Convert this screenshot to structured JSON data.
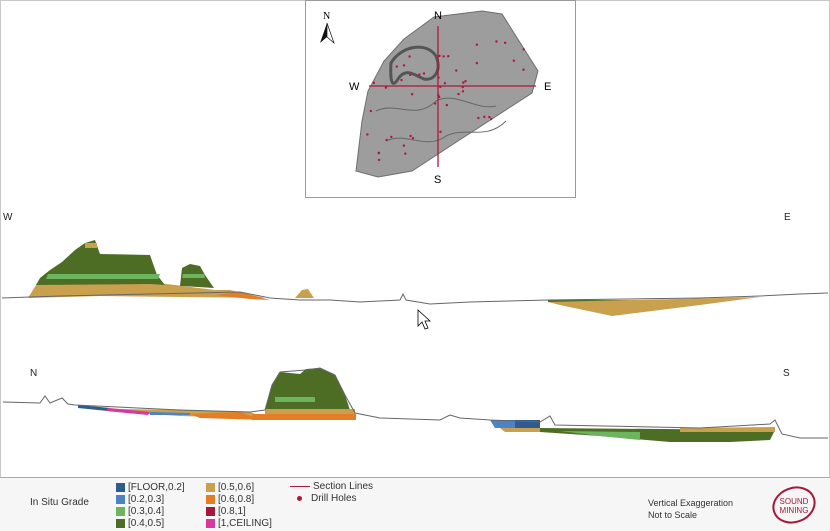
{
  "keymap": {
    "north_arrow": "N",
    "labels": {
      "n": "N",
      "s": "S",
      "w": "W",
      "e": "E"
    },
    "section_color": "#b0173e",
    "drill_hole_color": "#b0173e",
    "body_color": "#8c8c8c"
  },
  "sections": [
    {
      "start": "W",
      "end": "E"
    },
    {
      "start": "N",
      "end": "S"
    }
  ],
  "legend": {
    "title": "In Situ Grade",
    "grades": [
      {
        "label": "[FLOOR,0.2]",
        "color": "#2f5b8e"
      },
      {
        "label": "[0.2,0.3]",
        "color": "#4c82c6"
      },
      {
        "label": "[0.3,0.4]",
        "color": "#6db45e"
      },
      {
        "label": "[0.4,0.5]",
        "color": "#4e6d24"
      },
      {
        "label": "[0.5,0.6]",
        "color": "#c9a04e"
      },
      {
        "label": "[0.6,0.8]",
        "color": "#e47d26"
      },
      {
        "label": "[0.8,1]",
        "color": "#a3183c"
      },
      {
        "label": "[1,CEILING]",
        "color": "#d8389c"
      }
    ],
    "section_lines": "Section Lines",
    "drill_holes": "Drill Holes",
    "note_line1": "Vertical Exaggeration",
    "note_line2": "Not to Scale",
    "logo_line1": "SOUND",
    "logo_line2": "MINING"
  }
}
